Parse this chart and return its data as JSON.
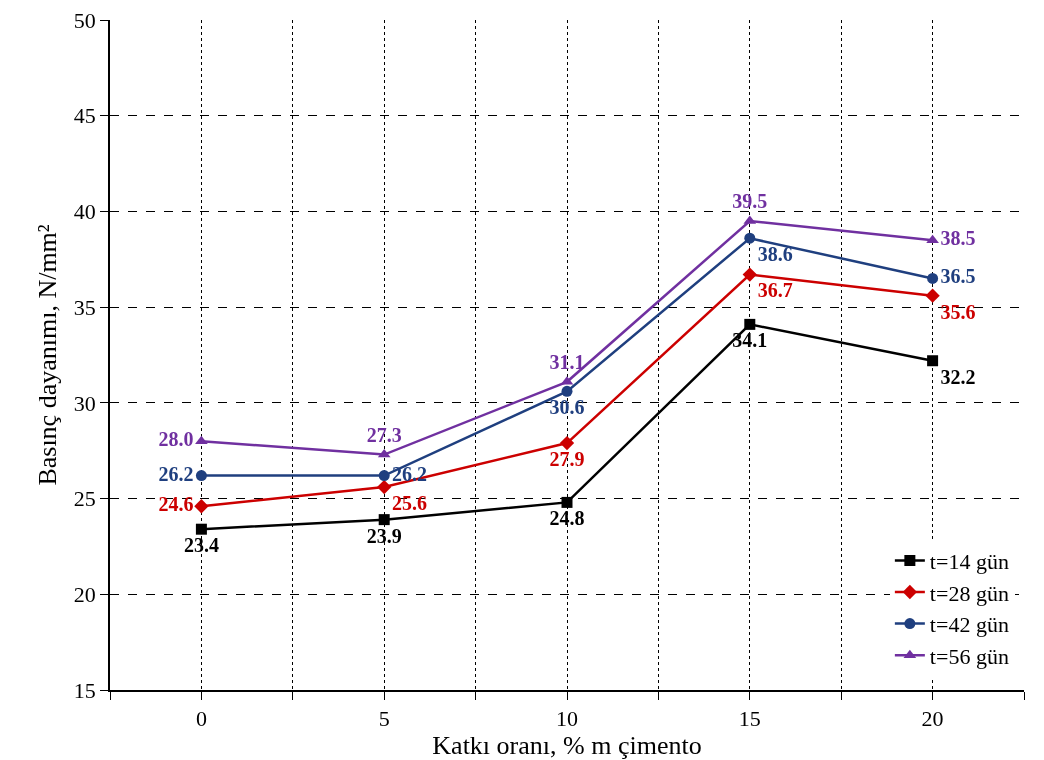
{
  "chart_data": {
    "type": "line",
    "xlabel": "Katkı oranı, % m çimento",
    "ylabel": "Basınç dayanımı, N/mm²",
    "x": [
      0,
      5,
      10,
      15,
      20
    ],
    "xlim": [
      -2.5,
      22.5
    ],
    "xticks": [
      {
        "value": -2.5,
        "label": null
      },
      0,
      {
        "value": 2.5,
        "label": null
      },
      5,
      {
        "value": 7.5,
        "label": null
      },
      10,
      {
        "value": 12.5,
        "label": null
      },
      15,
      {
        "value": 17.5,
        "label": null
      },
      20,
      {
        "value": 22.5,
        "label": null
      }
    ],
    "ylim": [
      15,
      50
    ],
    "yticks": [
      15,
      20,
      25,
      30,
      35,
      40,
      45,
      50
    ],
    "grid": true,
    "legend": "bottom right",
    "line_style": "solid",
    "series": [
      {
        "name": "t=14 gün",
        "color": "#000000",
        "marker": "square",
        "values": [
          23.4,
          23.9,
          24.8,
          34.1,
          32.2
        ],
        "value_labels": [
          "23.4",
          "23.9",
          "24.8",
          "34.1",
          "32.2"
        ]
      },
      {
        "name": "t=28 gün",
        "color": "#cc0000",
        "marker": "diamond",
        "values": [
          24.6,
          25.6,
          27.9,
          36.7,
          35.6
        ],
        "value_labels": [
          "24.6",
          "25.6",
          "27.9",
          "36.7",
          "35.6"
        ]
      },
      {
        "name": "t=42 gün",
        "color": "#1f3f7f",
        "marker": "circle",
        "values": [
          26.2,
          26.2,
          30.6,
          38.6,
          36.5
        ],
        "value_labels": [
          "26.2",
          "26.2",
          "30.6",
          "38.6",
          "36.5"
        ]
      },
      {
        "name": "t=56 gün",
        "color": "#7030a0",
        "marker": "triangle",
        "values": [
          28.0,
          27.3,
          31.1,
          39.5,
          38.5
        ],
        "value_labels": [
          "28.0",
          "27.3",
          "31.1",
          "39.5",
          "38.5"
        ]
      }
    ]
  }
}
